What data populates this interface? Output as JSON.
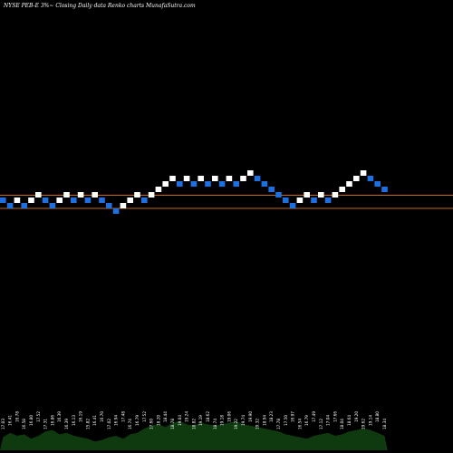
{
  "chart_data": {
    "type": "renko",
    "title": "NYSE PEB-E 3%~  Closing Daily data  Renko  charts MunafaSutra.com",
    "colors": {
      "background": "#000000",
      "up_brick": "#ffffff",
      "down_brick": "#1e6fe0",
      "reference_line": "#c46a1a",
      "volume_fill": "#0f3a0f"
    },
    "reference_lines": [
      17.76,
      16.95
    ],
    "bricks": [
      {
        "price": 16.95,
        "dir": "down"
      },
      {
        "price": 16.38,
        "dir": "down"
      },
      {
        "price": 16.95,
        "dir": "up"
      },
      {
        "price": 16.38,
        "dir": "down"
      },
      {
        "price": 16.95,
        "dir": "up"
      },
      {
        "price": 17.52,
        "dir": "up"
      },
      {
        "price": 16.95,
        "dir": "down"
      },
      {
        "price": 16.38,
        "dir": "down"
      },
      {
        "price": 16.95,
        "dir": "up"
      },
      {
        "price": 17.52,
        "dir": "up"
      },
      {
        "price": 16.95,
        "dir": "down"
      },
      {
        "price": 17.52,
        "dir": "up"
      },
      {
        "price": 16.95,
        "dir": "down"
      },
      {
        "price": 17.52,
        "dir": "up"
      },
      {
        "price": 16.95,
        "dir": "down"
      },
      {
        "price": 16.38,
        "dir": "down"
      },
      {
        "price": 15.81,
        "dir": "down"
      },
      {
        "price": 16.38,
        "dir": "up"
      },
      {
        "price": 16.95,
        "dir": "up"
      },
      {
        "price": 17.52,
        "dir": "up"
      },
      {
        "price": 16.95,
        "dir": "down"
      },
      {
        "price": 17.52,
        "dir": "up"
      },
      {
        "price": 18.09,
        "dir": "up"
      },
      {
        "price": 18.66,
        "dir": "up"
      },
      {
        "price": 19.23,
        "dir": "up"
      },
      {
        "price": 18.66,
        "dir": "down"
      },
      {
        "price": 19.23,
        "dir": "up"
      },
      {
        "price": 18.66,
        "dir": "down"
      },
      {
        "price": 19.23,
        "dir": "up"
      },
      {
        "price": 18.66,
        "dir": "down"
      },
      {
        "price": 19.23,
        "dir": "up"
      },
      {
        "price": 18.66,
        "dir": "down"
      },
      {
        "price": 19.23,
        "dir": "up"
      },
      {
        "price": 18.66,
        "dir": "down"
      },
      {
        "price": 19.23,
        "dir": "up"
      },
      {
        "price": 19.8,
        "dir": "up"
      },
      {
        "price": 19.23,
        "dir": "down"
      },
      {
        "price": 18.66,
        "dir": "down"
      },
      {
        "price": 18.09,
        "dir": "down"
      },
      {
        "price": 17.52,
        "dir": "down"
      },
      {
        "price": 16.95,
        "dir": "down"
      },
      {
        "price": 16.38,
        "dir": "down"
      },
      {
        "price": 16.95,
        "dir": "up"
      },
      {
        "price": 17.52,
        "dir": "up"
      },
      {
        "price": 16.95,
        "dir": "down"
      },
      {
        "price": 17.52,
        "dir": "up"
      },
      {
        "price": 16.95,
        "dir": "down"
      },
      {
        "price": 17.52,
        "dir": "up"
      },
      {
        "price": 18.09,
        "dir": "up"
      },
      {
        "price": 18.66,
        "dir": "up"
      },
      {
        "price": 19.23,
        "dir": "up"
      },
      {
        "price": 19.8,
        "dir": "up"
      },
      {
        "price": 19.23,
        "dir": "down"
      },
      {
        "price": 18.66,
        "dir": "down"
      },
      {
        "price": 18.09,
        "dir": "down"
      }
    ],
    "volume_labels": [
      "17.03",
      "16.41",
      "16.78",
      "16.58",
      "16.80",
      "17.52",
      "17.31",
      "16.86",
      "16.39",
      "16.39",
      "16.13",
      "16.19",
      "15.82",
      "16.41",
      "16.70",
      "17.02",
      "16.94",
      "17.48",
      "16.74",
      "16.79",
      "17.52",
      "17.60",
      "18.20",
      "18.44",
      "18.78",
      "19.04",
      "19.24",
      "18.82",
      "19.19",
      "18.62",
      "18.74",
      "19.18",
      "19.06",
      "19.22",
      "19.74",
      "19.90",
      "19.32",
      "18.94",
      "18.23",
      "17.78",
      "17.50",
      "16.97",
      "16.54",
      "16.79",
      "17.49",
      "17.12",
      "17.04",
      "17.66",
      "18.04",
      "18.64",
      "19.20",
      "19.62",
      "19.14",
      "18.80",
      "18.34"
    ],
    "volume_levels": [
      0.45,
      0.6,
      0.5,
      0.55,
      0.4,
      0.5,
      0.65,
      0.7,
      0.55,
      0.6,
      0.5,
      0.45,
      0.4,
      0.3,
      0.35,
      0.45,
      0.5,
      0.4,
      0.55,
      0.6,
      0.75,
      0.85,
      0.9,
      0.8,
      0.95,
      1.0,
      0.9,
      0.85,
      0.95,
      0.9,
      0.85,
      0.9,
      0.95,
      1.0,
      0.9,
      0.85,
      0.8,
      0.75,
      0.7,
      0.65,
      0.55,
      0.5,
      0.45,
      0.4,
      0.5,
      0.55,
      0.6,
      0.5,
      0.55,
      0.65,
      0.7,
      0.75,
      0.7,
      0.6,
      0.5
    ]
  }
}
